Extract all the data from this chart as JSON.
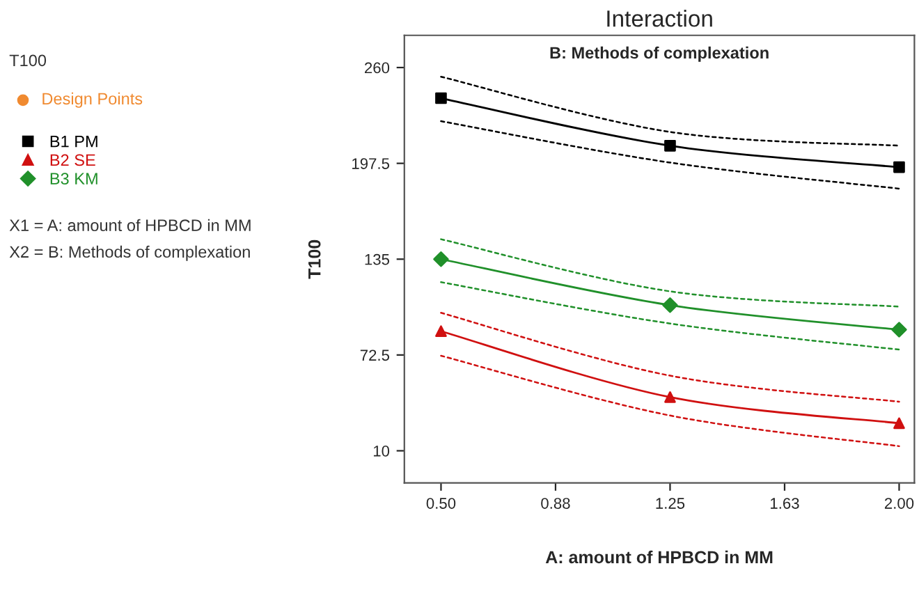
{
  "chart_data": {
    "type": "line",
    "title": "Interaction",
    "subtitle": "B: Methods of complexation",
    "xlabel": "A: amount of HPBCD in MM",
    "ylabel": "T100",
    "legend_title": "T100",
    "x": [
      0.5,
      1.25,
      2.0
    ],
    "series": [
      {
        "name": "B1 PM",
        "color": "#000000",
        "marker": "square",
        "line_style": "solid",
        "values": [
          240,
          209,
          195
        ]
      },
      {
        "color": "#000000",
        "marker": "none",
        "line_style": "dashed",
        "values": [
          254,
          218,
          209
        ]
      },
      {
        "color": "#000000",
        "marker": "none",
        "line_style": "dashed",
        "values": [
          225,
          198,
          181
        ]
      },
      {
        "name": "B2 SE",
        "color": "#d01010",
        "marker": "triangle",
        "line_style": "solid",
        "values": [
          88,
          45,
          28
        ]
      },
      {
        "color": "#d01010",
        "marker": "none",
        "line_style": "dashed",
        "values": [
          100,
          59,
          42
        ]
      },
      {
        "color": "#d01010",
        "marker": "none",
        "line_style": "dashed",
        "values": [
          72,
          33,
          13
        ]
      },
      {
        "name": "B3 KM",
        "color": "#20902a",
        "marker": "diamond",
        "line_style": "solid",
        "values": [
          135,
          105,
          89
        ]
      },
      {
        "color": "#20902a",
        "marker": "none",
        "line_style": "dashed",
        "values": [
          148,
          114,
          104
        ]
      },
      {
        "color": "#20902a",
        "marker": "none",
        "line_style": "dashed",
        "values": [
          120,
          93,
          76
        ]
      }
    ],
    "xlim": [
      0.38,
      2.05
    ],
    "ylim": [
      -11,
      281
    ],
    "xticks": [
      {
        "value": 0.5,
        "label": "0.50"
      },
      {
        "value": 0.875,
        "label": "0.88"
      },
      {
        "value": 1.25,
        "label": "1.25"
      },
      {
        "value": 1.625,
        "label": "1.63"
      },
      {
        "value": 2.0,
        "label": "2.00"
      }
    ],
    "yticks": [
      10,
      72.5,
      135,
      197.5,
      260
    ],
    "legend": "left",
    "grid": false,
    "annotations": [
      "Design Points",
      "X1 = A: amount of HPBCD in MM",
      "X2 = B: Methods of complexation"
    ]
  }
}
